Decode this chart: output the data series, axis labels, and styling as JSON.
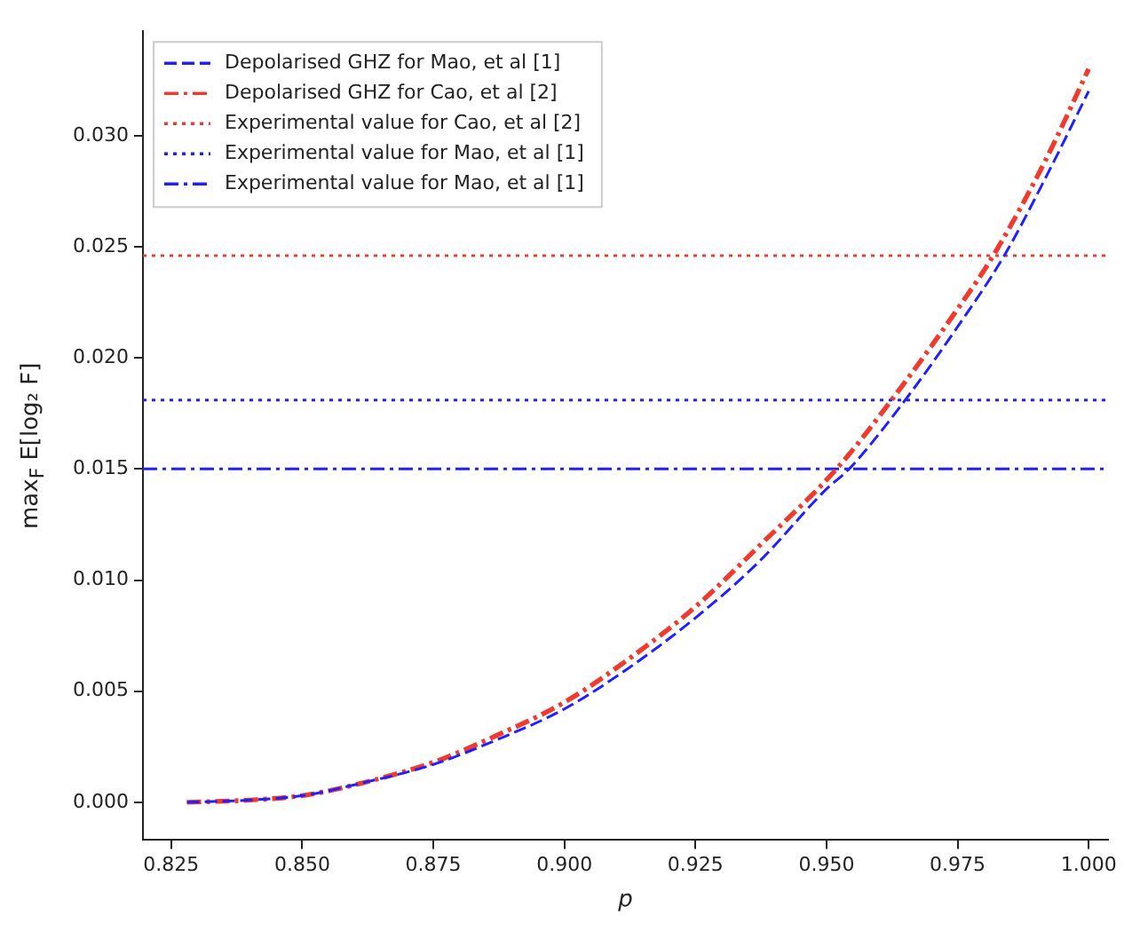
{
  "chart_data": {
    "type": "line",
    "xlabel": "p",
    "ylabel": "max$_{F}$ E[log₂ F]",
    "xlim": [
      0.8196,
      1.0037
    ],
    "xticks": [
      {
        "value": 0.825,
        "label": "0.825"
      },
      {
        "value": 0.85,
        "label": "0.850"
      },
      {
        "value": 0.875,
        "label": "0.875"
      },
      {
        "value": 0.9,
        "label": "0.900"
      },
      {
        "value": 0.925,
        "label": "0.925"
      },
      {
        "value": 0.95,
        "label": "0.950"
      },
      {
        "value": 0.975,
        "label": "0.975"
      },
      {
        "value": 1.0,
        "label": "1.000"
      }
    ],
    "ylim": [
      -0.0017,
      0.0347
    ],
    "yticks": [
      {
        "value": 0,
        "label": "0.000"
      },
      {
        "value": 0.005,
        "label": "0.005"
      },
      {
        "value": 0.01,
        "label": "0.010"
      },
      {
        "value": 0.015,
        "label": "0.015"
      },
      {
        "value": 0.02,
        "label": "0.020"
      },
      {
        "value": 0.025,
        "label": "0.025"
      },
      {
        "value": 0.03,
        "label": "0.030"
      }
    ],
    "grid": false,
    "legend": "top left",
    "marker": "none",
    "series": [
      {
        "name": "Depolarised GHZ for Mao, et al [1]",
        "color": "#1f1fff",
        "line_style": "dashed",
        "x": [
          0.828,
          0.84,
          0.85,
          0.862,
          0.875,
          0.887,
          0.9,
          0.912,
          0.925,
          0.937,
          0.95,
          0.9543,
          0.965,
          0.975,
          0.9839,
          0.992,
          1.0
        ],
        "values": [
          0,
          0.0001,
          0.0003,
          0.0009,
          0.0017,
          0.0028,
          0.0042,
          0.006,
          0.0083,
          0.0108,
          0.0141,
          0.015,
          0.0181,
          0.0214,
          0.0246,
          0.0282,
          0.032
        ]
      },
      {
        "name": "Depolarised GHZ for Cao, et al [2]",
        "color": "#f03a2e",
        "line_style": "dashdot",
        "x": [
          0.828,
          0.84,
          0.85,
          0.862,
          0.875,
          0.887,
          0.9,
          0.912,
          0.925,
          0.937,
          0.9519,
          0.9624,
          0.975,
          0.9818,
          0.992,
          1.0
        ],
        "values": [
          0,
          0.0001,
          0.0003,
          0.0009,
          0.0018,
          0.003,
          0.0045,
          0.0064,
          0.0088,
          0.0115,
          0.015,
          0.0181,
          0.0222,
          0.0246,
          0.029,
          0.033
        ]
      }
    ],
    "ref_lines": [
      {
        "axis": "y",
        "value": 0.0246,
        "label": "Experimental value for Cao, et al [2]",
        "color": "#f03a2e",
        "line_style": "dotted"
      },
      {
        "axis": "y",
        "value": 0.0181,
        "label": "Experimental value for Mao, et al [1]",
        "color": "#1f1fff",
        "line_style": "dotted"
      },
      {
        "axis": "y",
        "value": 0.015,
        "label": "Experimental value for Mao, et al [1]",
        "color": "#1f1fff",
        "line_style": "dashdot"
      }
    ]
  }
}
